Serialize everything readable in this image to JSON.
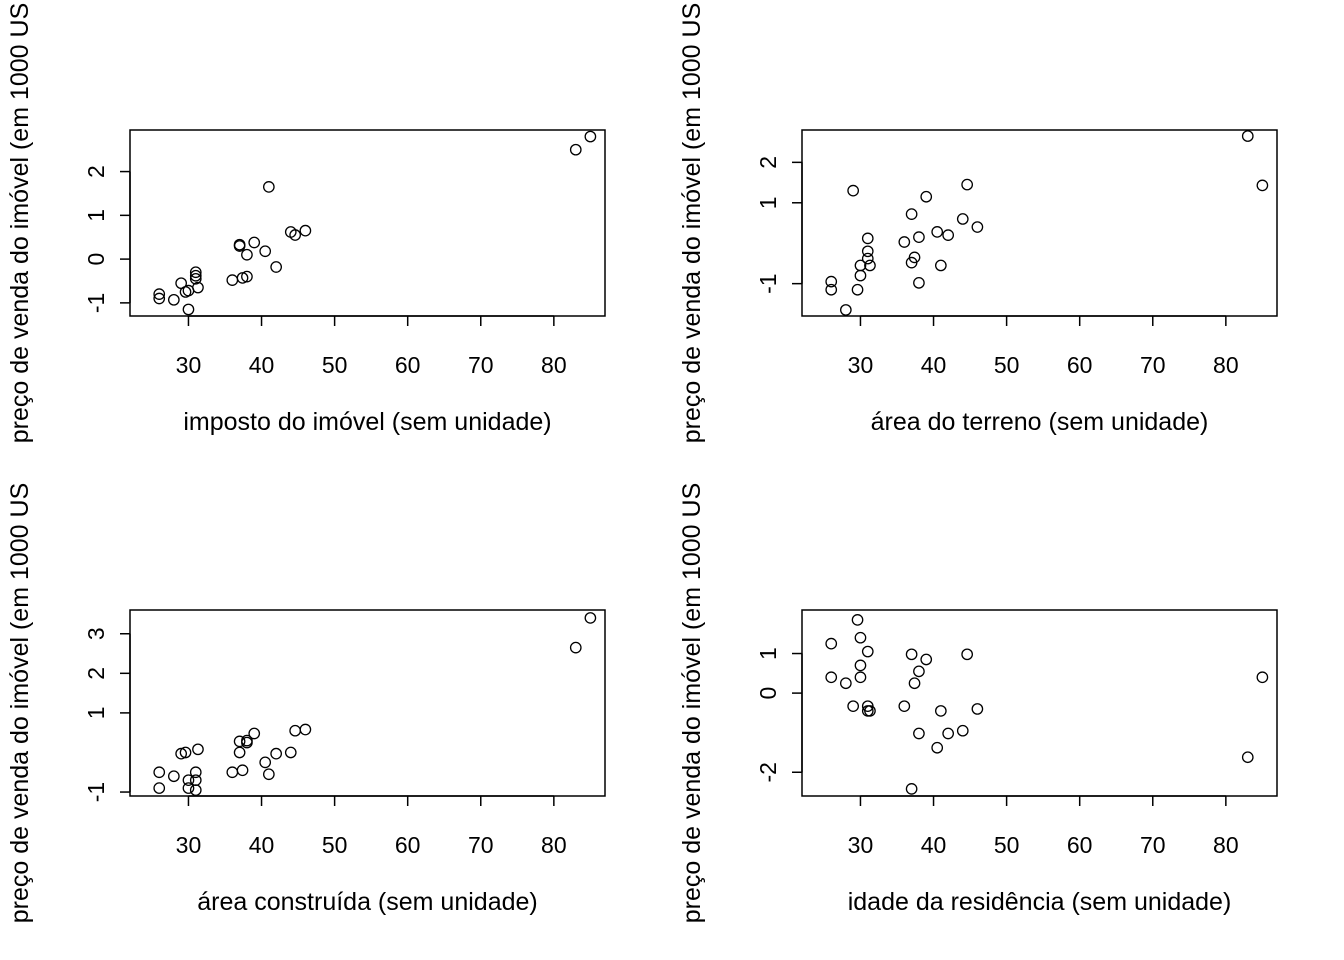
{
  "chart_data": [
    {
      "type": "scatter",
      "xlabel": "imposto do imóvel (sem unidade)",
      "ylabel": "preço de venda do imóvel (em 1000 US",
      "xlim": [
        22,
        87
      ],
      "ylim": [
        -1.3,
        2.95
      ],
      "xticks": [
        30,
        40,
        50,
        60,
        70,
        80
      ],
      "yticks": [
        -1,
        0,
        1,
        2
      ],
      "points": [
        {
          "x": 26,
          "y": -0.8
        },
        {
          "x": 26,
          "y": -0.9
        },
        {
          "x": 28,
          "y": -0.93
        },
        {
          "x": 29,
          "y": -0.55
        },
        {
          "x": 29.6,
          "y": -0.75
        },
        {
          "x": 30,
          "y": -0.72
        },
        {
          "x": 30,
          "y": -1.15
        },
        {
          "x": 31,
          "y": -0.45
        },
        {
          "x": 31,
          "y": -0.3
        },
        {
          "x": 31,
          "y": -0.38
        },
        {
          "x": 31.3,
          "y": -0.65
        },
        {
          "x": 36,
          "y": -0.48
        },
        {
          "x": 37,
          "y": 0.33
        },
        {
          "x": 37,
          "y": 0.3
        },
        {
          "x": 37.4,
          "y": -0.43
        },
        {
          "x": 38,
          "y": -0.4
        },
        {
          "x": 38,
          "y": 0.1
        },
        {
          "x": 39,
          "y": 0.38
        },
        {
          "x": 40.5,
          "y": 0.18
        },
        {
          "x": 41,
          "y": 1.65
        },
        {
          "x": 42,
          "y": -0.18
        },
        {
          "x": 44,
          "y": 0.62
        },
        {
          "x": 44.6,
          "y": 0.55
        },
        {
          "x": 46,
          "y": 0.65
        },
        {
          "x": 83,
          "y": 2.5
        },
        {
          "x": 85,
          "y": 2.8
        }
      ]
    },
    {
      "type": "scatter",
      "xlabel": "área do terreno (sem unidade)",
      "ylabel": "preço de venda do imóvel (em 1000 US",
      "xlim": [
        22,
        87
      ],
      "ylim": [
        -1.8,
        2.8
      ],
      "xticks": [
        30,
        40,
        50,
        60,
        70,
        80
      ],
      "yticks": [
        -1,
        1,
        2
      ],
      "points": [
        {
          "x": 26,
          "y": -0.95
        },
        {
          "x": 26,
          "y": -1.15
        },
        {
          "x": 28,
          "y": -1.65
        },
        {
          "x": 29,
          "y": 1.3
        },
        {
          "x": 29.6,
          "y": -1.15
        },
        {
          "x": 30,
          "y": -0.8
        },
        {
          "x": 30,
          "y": -0.55
        },
        {
          "x": 31,
          "y": -0.2
        },
        {
          "x": 31,
          "y": 0.12
        },
        {
          "x": 31,
          "y": -0.38
        },
        {
          "x": 31.3,
          "y": -0.55
        },
        {
          "x": 36,
          "y": 0.03
        },
        {
          "x": 37,
          "y": 0.72
        },
        {
          "x": 37,
          "y": -0.48
        },
        {
          "x": 37.4,
          "y": -0.35
        },
        {
          "x": 38,
          "y": 0.15
        },
        {
          "x": 38,
          "y": -0.98
        },
        {
          "x": 39,
          "y": 1.15
        },
        {
          "x": 40.5,
          "y": 0.28
        },
        {
          "x": 41,
          "y": -0.55
        },
        {
          "x": 42,
          "y": 0.2
        },
        {
          "x": 44,
          "y": 0.6
        },
        {
          "x": 44.6,
          "y": 1.45
        },
        {
          "x": 46,
          "y": 0.4
        },
        {
          "x": 83,
          "y": 2.65
        },
        {
          "x": 85,
          "y": 1.43
        }
      ]
    },
    {
      "type": "scatter",
      "xlabel": "área construída (sem unidade)",
      "ylabel": "preço de venda do imóvel (em 1000 US",
      "xlim": [
        22,
        87
      ],
      "ylim": [
        -1.1,
        3.6
      ],
      "xticks": [
        30,
        40,
        50,
        60,
        70,
        80
      ],
      "yticks": [
        -1,
        1,
        2,
        3
      ],
      "points": [
        {
          "x": 26,
          "y": -0.5
        },
        {
          "x": 26,
          "y": -0.9
        },
        {
          "x": 28,
          "y": -0.6
        },
        {
          "x": 29,
          "y": -0.03
        },
        {
          "x": 29.6,
          "y": 0
        },
        {
          "x": 30,
          "y": -0.7
        },
        {
          "x": 30,
          "y": -0.9
        },
        {
          "x": 31,
          "y": -0.5
        },
        {
          "x": 31,
          "y": -0.7
        },
        {
          "x": 31,
          "y": -0.95
        },
        {
          "x": 31.3,
          "y": 0.08
        },
        {
          "x": 36,
          "y": -0.5
        },
        {
          "x": 37,
          "y": 0.28
        },
        {
          "x": 37,
          "y": 0
        },
        {
          "x": 37.4,
          "y": -0.45
        },
        {
          "x": 38,
          "y": 0.25
        },
        {
          "x": 38,
          "y": 0.3
        },
        {
          "x": 39,
          "y": 0.48
        },
        {
          "x": 40.5,
          "y": -0.25
        },
        {
          "x": 41,
          "y": -0.55
        },
        {
          "x": 42,
          "y": -0.03
        },
        {
          "x": 44,
          "y": 0
        },
        {
          "x": 44.6,
          "y": 0.55
        },
        {
          "x": 46,
          "y": 0.58
        },
        {
          "x": 83,
          "y": 2.65
        },
        {
          "x": 85,
          "y": 3.4
        }
      ]
    },
    {
      "type": "scatter",
      "xlabel": "idade da residência (sem unidade)",
      "ylabel": "preço de venda do imóvel (em 1000 US",
      "xlim": [
        22,
        87
      ],
      "ylim": [
        -2.6,
        2.1
      ],
      "xticks": [
        30,
        40,
        50,
        60,
        70,
        80
      ],
      "yticks": [
        -2,
        0,
        1
      ],
      "points": [
        {
          "x": 26,
          "y": 1.25
        },
        {
          "x": 26,
          "y": 0.4
        },
        {
          "x": 28,
          "y": 0.25
        },
        {
          "x": 29,
          "y": -0.33
        },
        {
          "x": 29.6,
          "y": 1.85
        },
        {
          "x": 30,
          "y": 1.4
        },
        {
          "x": 30,
          "y": 0.7
        },
        {
          "x": 30,
          "y": 0.4
        },
        {
          "x": 31,
          "y": 1.05
        },
        {
          "x": 31,
          "y": -0.33
        },
        {
          "x": 31.3,
          "y": -0.45
        },
        {
          "x": 31,
          "y": -0.45
        },
        {
          "x": 36,
          "y": -0.33
        },
        {
          "x": 37,
          "y": 0.98
        },
        {
          "x": 37,
          "y": -2.42
        },
        {
          "x": 37.4,
          "y": 0.25
        },
        {
          "x": 38,
          "y": 0.55
        },
        {
          "x": 38,
          "y": -1.02
        },
        {
          "x": 39,
          "y": 0.85
        },
        {
          "x": 40.5,
          "y": -1.38
        },
        {
          "x": 41,
          "y": -0.45
        },
        {
          "x": 42,
          "y": -1.02
        },
        {
          "x": 44,
          "y": -0.95
        },
        {
          "x": 44.6,
          "y": 0.98
        },
        {
          "x": 46,
          "y": -0.4
        },
        {
          "x": 83,
          "y": -1.62
        },
        {
          "x": 85,
          "y": 0.4
        }
      ]
    }
  ]
}
